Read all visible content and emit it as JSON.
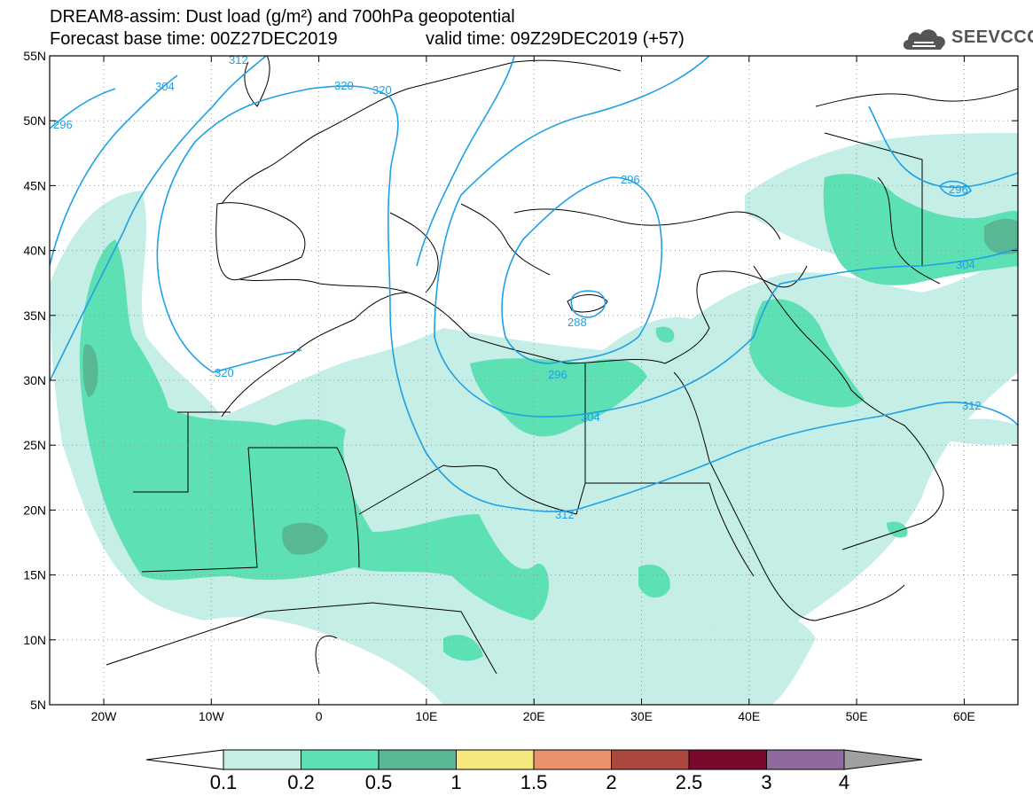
{
  "title_line1": "DREAM8-assim: Dust load (g/m²) and 700hPa geopotential",
  "title_line2_base": "Forecast base time: 00Z27DEC2019",
  "title_line2_valid": "valid time: 09Z29DEC2019 (+57)",
  "logo_text": "SEEVCCC",
  "icons": {
    "logo": "cloud-logo-icon"
  },
  "map": {
    "lon_labels": [
      "20W",
      "10W",
      "0",
      "10E",
      "20E",
      "30E",
      "40E",
      "50E",
      "60E"
    ],
    "lat_labels": [
      "55N",
      "50N",
      "45N",
      "40N",
      "35N",
      "30N",
      "25N",
      "20N",
      "15N",
      "10N",
      "5N"
    ],
    "contour_labels": [
      "296",
      "304",
      "312",
      "320",
      "320",
      "320",
      "296",
      "288",
      "296",
      "304",
      "312",
      "304",
      "312",
      "296"
    ]
  },
  "colorbar": {
    "labels": [
      "0.1",
      "0.2",
      "0.5",
      "1",
      "1.5",
      "2",
      "2.5",
      "3",
      "4"
    ],
    "colors": [
      "#c4eee6",
      "#5de0b4",
      "#58b894",
      "#f4e87c",
      "#ea926c",
      "#aa4840",
      "#7a0a2c",
      "#8e6a9e",
      "#a0a0a0"
    ]
  }
}
